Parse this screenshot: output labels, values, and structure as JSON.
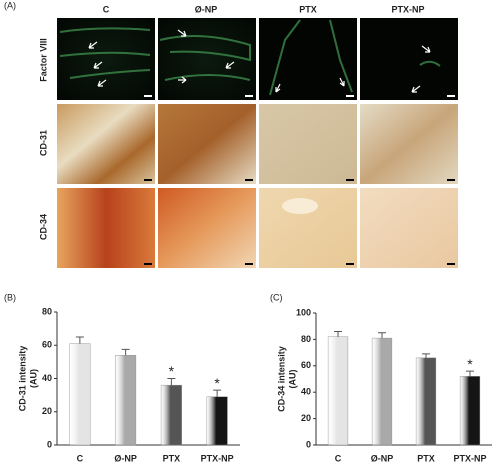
{
  "figure": {
    "panel_a": "(A)",
    "columns": [
      "C",
      "Ø-NP",
      "PTX",
      "PTX-NP"
    ],
    "rows": [
      "Factor VIII",
      "CD-31",
      "CD-34"
    ]
  },
  "chart_data": [
    {
      "type": "bar",
      "panel": "(B)",
      "ylabel": [
        "CD-31 intensity",
        "(AU)"
      ],
      "categories": [
        "C",
        "Ø-NP",
        "PTX",
        "PTX-NP"
      ],
      "values": [
        61,
        54,
        36,
        29
      ],
      "errors": [
        4,
        3.5,
        4,
        4
      ],
      "colors": [
        "#e4e4e4",
        "#a9a9a9",
        "#555555",
        "#151515"
      ],
      "annotations": [
        {
          "category": "PTX",
          "text": "*"
        },
        {
          "category": "PTX-NP",
          "text": "*"
        }
      ],
      "ylim": [
        0,
        80
      ],
      "yticks": [
        0,
        20,
        40,
        60,
        80
      ]
    },
    {
      "type": "bar",
      "panel": "(C)",
      "ylabel": [
        "CD-34 intensity",
        "(AU)"
      ],
      "categories": [
        "C",
        "Ø-NP",
        "PTX",
        "PTX-NP"
      ],
      "values": [
        82,
        81,
        66,
        52
      ],
      "errors": [
        4,
        4,
        3,
        4
      ],
      "colors": [
        "#e4e4e4",
        "#a9a9a9",
        "#555555",
        "#151515"
      ],
      "annotations": [
        {
          "category": "PTX-NP",
          "text": "*"
        }
      ],
      "ylim": [
        0,
        100
      ],
      "yticks": [
        0,
        20,
        40,
        60,
        80,
        100
      ]
    }
  ]
}
